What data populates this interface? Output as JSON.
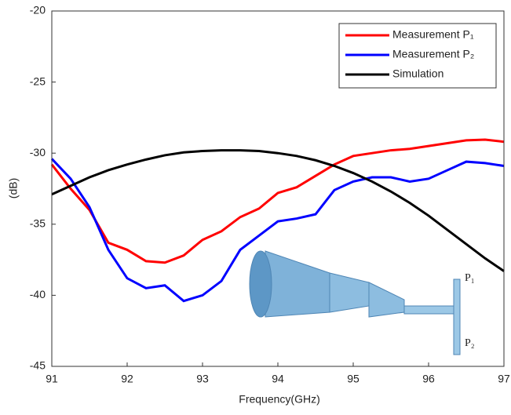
{
  "chart_data": {
    "type": "line",
    "xlabel": "Frequency(GHz)",
    "ylabel": "(dB)",
    "x": [
      91,
      91.25,
      91.5,
      91.75,
      92,
      92.25,
      92.5,
      92.75,
      93,
      93.25,
      93.5,
      93.75,
      94,
      94.25,
      94.5,
      94.75,
      95,
      95.25,
      95.5,
      95.75,
      96,
      96.25,
      96.5,
      96.75,
      97
    ],
    "series": [
      {
        "name": "Measurement P₁",
        "color": "#ff0000",
        "values": [
          -30.8,
          -32.5,
          -34.0,
          -36.3,
          -36.8,
          -37.6,
          -37.7,
          -37.2,
          -36.1,
          -35.5,
          -34.5,
          -33.9,
          -32.8,
          -32.4,
          -31.6,
          -30.8,
          -30.2,
          -30.0,
          -29.8,
          -29.7,
          -29.5,
          -29.3,
          -29.1,
          -29.05,
          -29.2
        ]
      },
      {
        "name": "Measurement P₂",
        "color": "#0000ff",
        "values": [
          -30.4,
          -31.8,
          -33.8,
          -36.8,
          -38.8,
          -39.5,
          -39.3,
          -40.4,
          -40.0,
          -39.0,
          -36.8,
          -35.8,
          -34.8,
          -34.6,
          -34.3,
          -32.6,
          -32.0,
          -31.7,
          -31.7,
          -32.0,
          -31.8,
          -31.2,
          -30.6,
          -30.7,
          -30.9
        ]
      },
      {
        "name": "Simulation",
        "color": "#000000",
        "values": [
          -32.9,
          -32.3,
          -31.7,
          -31.2,
          -30.8,
          -30.45,
          -30.15,
          -29.95,
          -29.85,
          -29.8,
          -29.8,
          -29.85,
          -30.0,
          -30.2,
          -30.5,
          -30.9,
          -31.4,
          -32.0,
          -32.7,
          -33.5,
          -34.4,
          -35.4,
          -36.4,
          -37.4,
          -38.3
        ]
      }
    ],
    "xlim": [
      91,
      97
    ],
    "xticks": [
      91,
      92,
      93,
      94,
      95,
      96,
      97
    ],
    "ylim": [
      -45,
      -20
    ],
    "yticks": [
      -45,
      -40,
      -35,
      -30,
      -25,
      -20
    ],
    "legend": "upper right",
    "annotations": [
      "P₁",
      "P₂"
    ]
  }
}
